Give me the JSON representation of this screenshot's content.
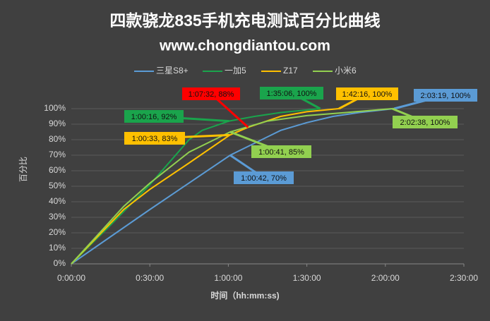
{
  "chart_data": {
    "type": "line",
    "title": "四款骁龙835手机充电测试百分比曲线",
    "subtitle": "www.chongdiantou.com",
    "x_label": "时间（hh:mm:ss)",
    "y_label": "百分比",
    "xlim": [
      0,
      9000
    ],
    "xticks": [
      {
        "value": 0,
        "label": "0:00:00"
      },
      {
        "value": 1800,
        "label": "0:30:00"
      },
      {
        "value": 3600,
        "label": "1:00:00"
      },
      {
        "value": 5400,
        "label": "1:30:00"
      },
      {
        "value": 7200,
        "label": "2:00:00"
      },
      {
        "value": 9000,
        "label": "2:30:00"
      }
    ],
    "ylim": [
      0,
      100
    ],
    "yticks": [
      {
        "value": 0,
        "label": "0%"
      },
      {
        "value": 10,
        "label": "10%"
      },
      {
        "value": 20,
        "label": "20%"
      },
      {
        "value": 30,
        "label": "30%"
      },
      {
        "value": 40,
        "label": "40%"
      },
      {
        "value": 50,
        "label": "50%"
      },
      {
        "value": 60,
        "label": "60%"
      },
      {
        "value": 70,
        "label": "70%"
      },
      {
        "value": 80,
        "label": "80%"
      },
      {
        "value": 90,
        "label": "90%"
      },
      {
        "value": 100,
        "label": "100%"
      }
    ],
    "grid": true,
    "legend": "top",
    "series": [
      {
        "name": "三星S8+",
        "color": "#5b9bd5",
        "x": [
          0,
          1800,
          3642,
          4800,
          5400,
          6000,
          6600,
          7399
        ],
        "values": [
          0,
          35,
          70,
          86,
          91,
          95,
          97.5,
          100
        ]
      },
      {
        "name": "一加5",
        "color": "#1aa44c",
        "x": [
          0,
          900,
          1800,
          2700,
          3000,
          3616,
          4200,
          4800,
          5706
        ],
        "values": [
          0,
          25,
          51,
          80,
          86,
          92,
          95,
          97.5,
          100
        ]
      },
      {
        "name": "Z17",
        "color": "#ffc000",
        "x": [
          0,
          1200,
          1800,
          2700,
          3633,
          4052,
          4800,
          5400,
          6136
        ],
        "values": [
          0,
          35,
          48,
          65,
          83,
          88,
          95,
          98,
          100
        ]
      },
      {
        "name": "小米6",
        "color": "#92d050",
        "x": [
          0,
          1200,
          1800,
          2700,
          3641,
          4500,
          5400,
          6300,
          7358
        ],
        "values": [
          0,
          37,
          52,
          72,
          85,
          92,
          95.5,
          97.5,
          100
        ]
      }
    ],
    "annotations": [
      {
        "text": "1:07:32, 88%",
        "color": "#ff0000",
        "x": 4052,
        "y": 88
      },
      {
        "text": "1:35:06, 100%",
        "color": "#1aa44c",
        "x": 5706,
        "y": 100
      },
      {
        "text": "1:42:16, 100%",
        "color": "#ffc000",
        "x": 6136,
        "y": 100
      },
      {
        "text": "2:03:19, 100%",
        "color": "#5b9bd5",
        "x": 7399,
        "y": 100
      },
      {
        "text": "1:00:16, 92%",
        "color": "#1aa44c",
        "x": 3616,
        "y": 92
      },
      {
        "text": "2:02:38, 100%",
        "color": "#92d050",
        "x": 7358,
        "y": 100
      },
      {
        "text": "1:00:33, 83%",
        "color": "#ffc000",
        "x": 3633,
        "y": 83
      },
      {
        "text": "1:00:41, 85%",
        "color": "#92d050",
        "x": 3641,
        "y": 85
      },
      {
        "text": "1:00:42, 70%",
        "color": "#5b9bd5",
        "x": 3642,
        "y": 70
      }
    ]
  }
}
